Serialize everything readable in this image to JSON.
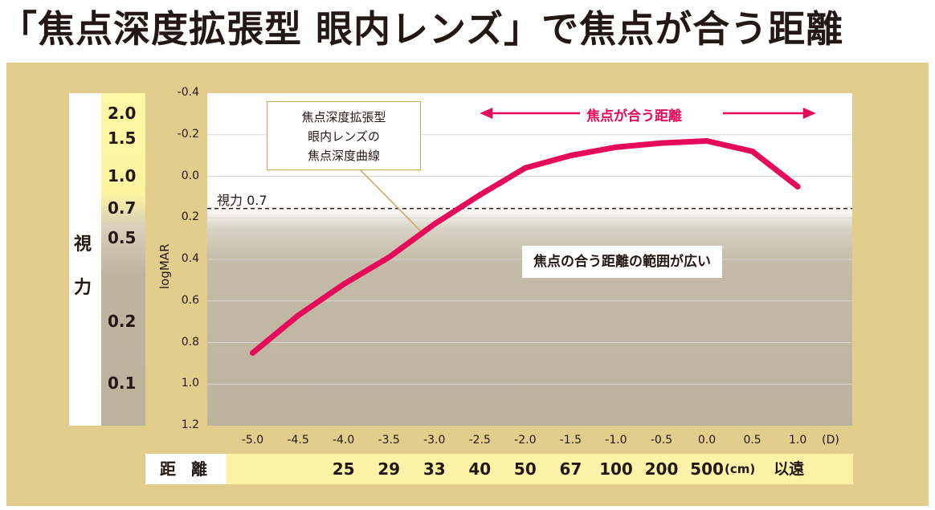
{
  "title": "「焦点深度拡張型 眼内レンズ」で焦点が合う距離",
  "chart_data": {
    "type": "line",
    "ylabel": "logMAR",
    "ylim": [
      1.2,
      -0.4
    ],
    "y_reversed": true,
    "yticks": [
      "-0.4",
      "-0.2",
      "0.0",
      "0.2",
      "0.4",
      "0.6",
      "0.8",
      "1.0",
      "1.2"
    ],
    "xticks": [
      "-5.0",
      "-4.5",
      "-4.0",
      "-3.5",
      "-3.0",
      "-2.5",
      "-2.0",
      "-1.5",
      "-1.0",
      "-0.5",
      "0.0",
      "0.5",
      "1.0"
    ],
    "x_unit": "(D)",
    "xlim": [
      -5.5,
      1.6
    ],
    "series": [
      {
        "color": "#e60a5a",
        "x": [
          -5.0,
          -4.5,
          -4.0,
          -3.5,
          -3.0,
          -2.5,
          -2.0,
          -1.5,
          -1.0,
          -0.5,
          0.0,
          0.5,
          1.0
        ],
        "y": [
          0.85,
          0.67,
          0.52,
          0.39,
          0.23,
          0.09,
          -0.04,
          -0.1,
          -0.14,
          -0.16,
          -0.17,
          -0.12,
          0.05
        ]
      }
    ],
    "reference_line": {
      "label": "視力 0.7",
      "y": 0.155
    },
    "vision_axis": {
      "label_chars": [
        "視",
        "力"
      ],
      "ticks": [
        {
          "label": "2.0",
          "logmar": -0.3
        },
        {
          "label": "1.5",
          "logmar": -0.18
        },
        {
          "label": "1.0",
          "logmar": 0.0
        },
        {
          "label": "0.7",
          "logmar": 0.155
        },
        {
          "label": "0.5",
          "logmar": 0.3
        },
        {
          "label": "0.2",
          "logmar": 0.7
        },
        {
          "label": "0.1",
          "logmar": 1.0
        }
      ]
    },
    "legend": {
      "lines": [
        "焦点深度拡張型",
        "眼内レンズの",
        "焦点深度曲線"
      ]
    },
    "range_annotation": {
      "label": "焦点が合う距離",
      "from": -2.5,
      "to": 1.2,
      "color": "#e60a5a"
    },
    "shaded_annotation": "焦点の合う距離の範囲が広い"
  },
  "distance_row": {
    "label": "距 離",
    "values": [
      {
        "x": -4.0,
        "value": "25"
      },
      {
        "x": -3.5,
        "value": "29"
      },
      {
        "x": -3.0,
        "value": "33"
      },
      {
        "x": -2.5,
        "value": "40"
      },
      {
        "x": -2.0,
        "value": "50"
      },
      {
        "x": -1.5,
        "value": "67"
      },
      {
        "x": -1.0,
        "value": "100"
      },
      {
        "x": -0.5,
        "value": "200"
      },
      {
        "x": 0.0,
        "value": "500"
      }
    ],
    "unit": "(cm)",
    "far": "以遠"
  },
  "colors": {
    "panel": "#e3cd8c",
    "curve": "#e60a5a",
    "distance_bar": "#fbf2a8"
  }
}
